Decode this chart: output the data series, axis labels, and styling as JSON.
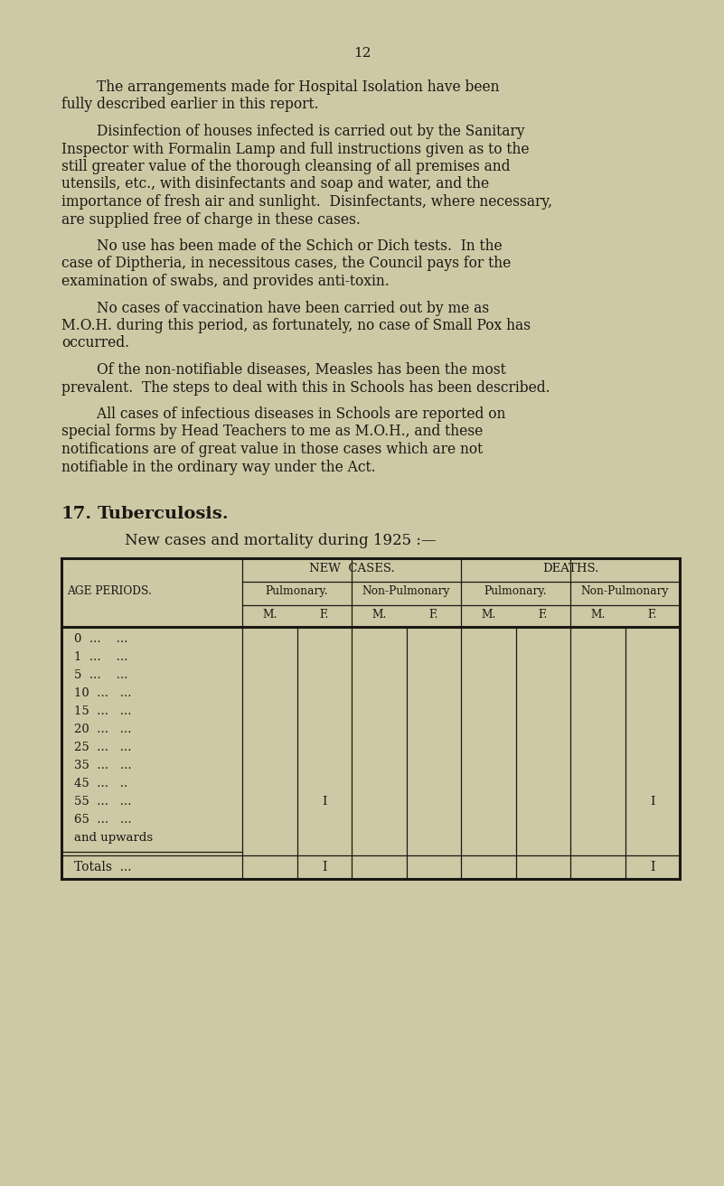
{
  "background_color": "#cdc9a5",
  "page_number": "12",
  "text_color": "#1a1814",
  "para1_lines": [
    "        The arrangements made for Hospital Isolation have been",
    "fully described earlier in this report."
  ],
  "para2_lines": [
    "        Disinfection of houses infected is carried out by the Sanitary",
    "Inspector with Formalin Lamp and full instructions given as to the",
    "still greater value of the thorough cleansing of all premises and",
    "utensils, etc., with disinfectants and soap and water, and the",
    "importance of fresh air and sunlight.  Disinfectants, where necessary,",
    "are supplied free of charge in these cases."
  ],
  "para3_lines": [
    "        No use has been made of the Schich or Dich tests.  In the",
    "case of Diptheria, in necessitous cases, the Council pays for the",
    "examination of swabs, and provides anti-toxin."
  ],
  "para4_lines": [
    "        No cases of vaccination have been carried out by me as",
    "M.O.H. during this period, as fortunately, no case of Small Pox has",
    "occurred."
  ],
  "para5_lines": [
    "        Of the non-notifiable diseases, Measles has been the most",
    "prevalent.  The steps to deal with this in Schools has been described."
  ],
  "para6_lines": [
    "        All cases of infectious diseases in Schools are reported on",
    "special forms by Head Teachers to me as M.O.H., and these",
    "notifications are of great value in those cases which are not",
    "notifiable in the ordinary way under the Act."
  ],
  "section_number": "17.",
  "section_title": "Tuberculosis.",
  "table_subtitle": "New cases and mortality during 1925 :—",
  "age_rows": [
    "0  ...    ...",
    "1  ...    ...",
    "5  ...    ...",
    "10  ...   ...",
    "15  ...   ...",
    "20  ...   ...",
    "25  ...   ...",
    "35  ...   ...",
    "45  ...   ..",
    "55  ...   ...",
    "65  ...   ...",
    "and upwards"
  ],
  "data_rows": [
    [
      "",
      "",
      "",
      "",
      "",
      "",
      "",
      ""
    ],
    [
      "",
      "",
      "",
      "",
      "",
      "",
      "",
      ""
    ],
    [
      "",
      "",
      "",
      "",
      "",
      "",
      "",
      ""
    ],
    [
      "",
      "",
      "",
      "",
      "",
      "",
      "",
      ""
    ],
    [
      "",
      "",
      "",
      "",
      "",
      "",
      "",
      ""
    ],
    [
      "",
      "",
      "",
      "",
      "",
      "",
      "",
      ""
    ],
    [
      "",
      "",
      "",
      "",
      "",
      "",
      "",
      ""
    ],
    [
      "",
      "",
      "",
      "",
      "",
      "",
      "",
      ""
    ],
    [
      "",
      "",
      "",
      "",
      "",
      "",
      "",
      ""
    ],
    [
      "",
      "I",
      "",
      "",
      "",
      "",
      "",
      "I"
    ],
    [
      "",
      "",
      "",
      "",
      "",
      "",
      "",
      ""
    ],
    [
      "",
      "",
      "",
      "",
      "",
      "",
      "",
      ""
    ]
  ],
  "totals_row": [
    "",
    "I",
    "",
    "",
    "",
    "",
    "",
    "I"
  ]
}
